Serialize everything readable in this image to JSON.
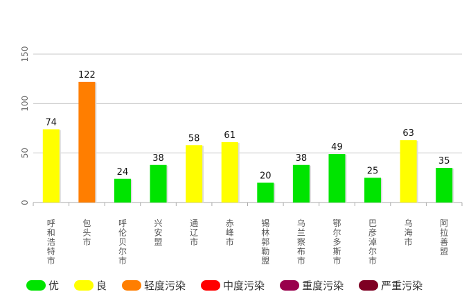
{
  "chart_data": {
    "type": "bar",
    "categories": [
      "呼和浩特市",
      "包头市",
      "呼伦贝尔市",
      "兴安盟",
      "通辽市",
      "赤峰市",
      "锡林郭勒盟",
      "乌兰察布市",
      "鄂尔多斯市",
      "巴彦淖尔市",
      "乌海市",
      "阿拉善盟"
    ],
    "values": [
      74,
      122,
      24,
      38,
      58,
      61,
      20,
      38,
      49,
      25,
      63,
      35
    ],
    "bar_colors": [
      "#FFFF00",
      "#FF7E00",
      "#00E400",
      "#00E400",
      "#FFFF00",
      "#FFFF00",
      "#00E400",
      "#00E400",
      "#00E400",
      "#00E400",
      "#FFFF00",
      "#00E400"
    ],
    "yticks": [
      0,
      50,
      100,
      150
    ],
    "ylim": [
      0,
      150
    ],
    "grid": true,
    "legend_position": "bottom"
  },
  "legend": [
    {
      "label": "优",
      "color": "#00E400"
    },
    {
      "label": "良",
      "color": "#FFFF00"
    },
    {
      "label": "轻度污染",
      "color": "#FF7E00"
    },
    {
      "label": "中度污染",
      "color": "#FF0000"
    },
    {
      "label": "重度污染",
      "color": "#99004C"
    },
    {
      "label": "严重污染",
      "color": "#7E0023"
    }
  ]
}
